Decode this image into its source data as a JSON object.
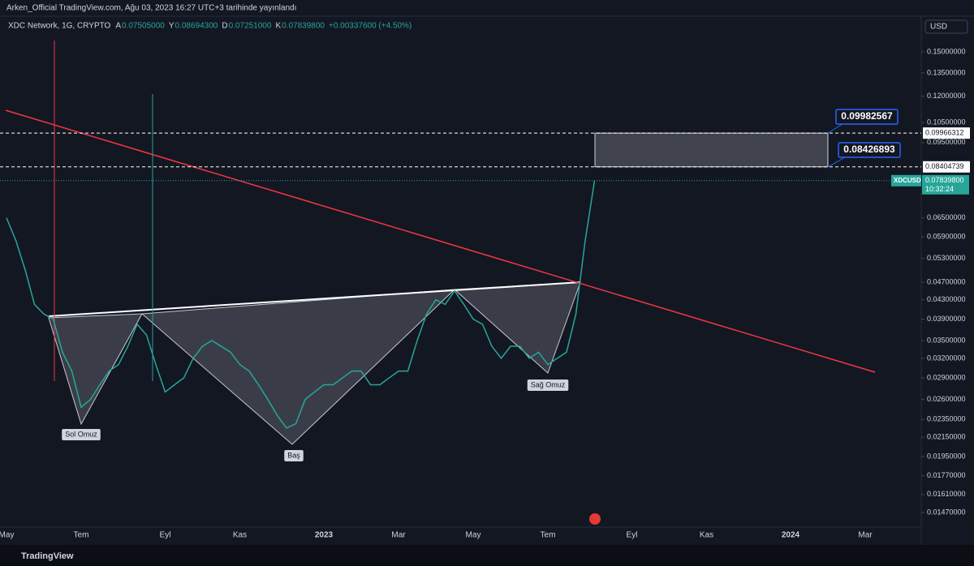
{
  "header": {
    "published": "Arken_Official TradingView.com, Ağu 03, 2023 16:27 UTC+3 tarihinde yayınlandı",
    "symbol": "XDC Network, 1G, CRYPTO",
    "ohlc": [
      {
        "key": "A",
        "text": "0.07505000"
      },
      {
        "key": "Y",
        "text": "0.08694300"
      },
      {
        "key": "D",
        "text": "0.07251000"
      },
      {
        "key": "K",
        "text": "0.07839800"
      }
    ],
    "change": "+0.00337600 (+4.50%)",
    "currency": "USD",
    "countdown": "10:32:24",
    "brand": "TradingView"
  },
  "chart_data": {
    "type": "line",
    "log_scale": true,
    "grid": false,
    "categories": [
      "May",
      null,
      null,
      null,
      null,
      null,
      null,
      null,
      "Tem",
      null,
      null,
      null,
      null,
      null,
      null,
      null,
      null,
      "Eyl",
      null,
      null,
      null,
      null,
      null,
      null,
      null,
      "Kas",
      null,
      null,
      null,
      null,
      null,
      null,
      null,
      null,
      "2023",
      null,
      null,
      null,
      null,
      null,
      null,
      null,
      "Mar",
      null,
      null,
      null,
      null,
      null,
      null,
      null,
      "May",
      null,
      null,
      null,
      null,
      null,
      null,
      null,
      "Tem",
      null,
      null,
      null,
      null,
      null,
      null,
      null,
      null,
      "Eyl",
      null,
      null,
      null,
      null,
      null,
      null,
      null,
      "Kas",
      null,
      null,
      null,
      null,
      null,
      null,
      null,
      null,
      "2024",
      null,
      null,
      null,
      null,
      null,
      null,
      null,
      "Mar",
      null,
      null,
      null,
      null,
      null
    ],
    "series": [
      {
        "name": "XDCUSD",
        "color": "#26a69a",
        "values": [
          0.065,
          0.058,
          0.05,
          0.042,
          0.04,
          0.039,
          0.033,
          0.03,
          0.025,
          0.026,
          0.028,
          0.03,
          0.031,
          0.034,
          0.038,
          0.036,
          0.031,
          0.027,
          0.028,
          0.029,
          0.032,
          0.034,
          0.035,
          0.034,
          0.033,
          0.031,
          0.03,
          0.028,
          0.026,
          0.024,
          0.0225,
          0.023,
          0.026,
          0.027,
          0.028,
          0.028,
          0.029,
          0.03,
          0.03,
          0.028,
          0.028,
          0.029,
          0.03,
          0.03,
          0.035,
          0.04,
          0.043,
          0.042,
          0.045,
          0.042,
          0.039,
          0.038,
          0.034,
          0.032,
          0.034,
          0.034,
          0.032,
          0.033,
          0.031,
          0.032,
          0.033,
          0.04,
          0.058,
          0.078398,
          null,
          null,
          null,
          null,
          null,
          null,
          null,
          null,
          null,
          null,
          null,
          null,
          null,
          null,
          null,
          null,
          null,
          null,
          null,
          null,
          null,
          null,
          null,
          null,
          null,
          null,
          null,
          null,
          null,
          null,
          null,
          null,
          null,
          null
        ],
        "value_labels": [
          null,
          null,
          null,
          null,
          null,
          null,
          null,
          null,
          null,
          null,
          null,
          null,
          null,
          null,
          null,
          null,
          null,
          null,
          null,
          null,
          null,
          null,
          null,
          null,
          null,
          null,
          null,
          null,
          null,
          null,
          null,
          null,
          null,
          null,
          null,
          null,
          null,
          null,
          null,
          null,
          null,
          null,
          null,
          null,
          null,
          null,
          null,
          null,
          null,
          null,
          null,
          null,
          null,
          null,
          null,
          null,
          null,
          null,
          null,
          null,
          null,
          null,
          null,
          "0.07839800",
          null,
          null,
          null,
          null,
          null,
          null,
          null,
          null,
          null,
          null,
          null,
          null,
          null,
          null,
          null,
          null,
          null,
          null,
          null,
          null,
          null,
          null,
          null,
          null,
          null,
          null,
          null,
          null,
          null,
          null,
          null,
          null,
          null,
          null
        ]
      }
    ],
    "ylim": [
      0.01366,
      0.1797
    ],
    "yticks": [
      {
        "value": 0.0147,
        "label": "0.01470000"
      },
      {
        "value": 0.0161,
        "label": "0.01610000"
      },
      {
        "value": 0.0177,
        "label": "0.01770000"
      },
      {
        "value": 0.0195,
        "label": "0.01950000"
      },
      {
        "value": 0.0215,
        "label": "0.02150000"
      },
      {
        "value": 0.0235,
        "label": "0.02350000"
      },
      {
        "value": 0.026,
        "label": "0.02600000"
      },
      {
        "value": 0.029,
        "label": "0.02900000"
      },
      {
        "value": 0.032,
        "label": "0.03200000"
      },
      {
        "value": 0.035,
        "label": "0.03500000"
      },
      {
        "value": 0.039,
        "label": "0.03900000"
      },
      {
        "value": 0.043,
        "label": "0.04300000"
      },
      {
        "value": 0.047,
        "label": "0.04700000"
      },
      {
        "value": 0.053,
        "label": "0.05300000"
      },
      {
        "value": 0.059,
        "label": "0.05900000"
      },
      {
        "value": 0.065,
        "label": "0.06500000"
      },
      {
        "value": 0.095,
        "label": "0.09500000"
      },
      {
        "value": 0.105,
        "label": "0.10500000"
      },
      {
        "value": 0.12,
        "label": "0.12000000"
      },
      {
        "value": 0.135,
        "label": "0.13500000"
      },
      {
        "value": 0.15,
        "label": "0.15000000"
      }
    ],
    "levels": [
      {
        "value": 0.09966312,
        "label": "0.09966312",
        "callout": "0.09982567"
      },
      {
        "value": 0.08404739,
        "label": "0.08404739",
        "callout": "0.08426893"
      }
    ],
    "annotations": [
      "Sol Omuz",
      "Baş",
      "Sağ Omuz"
    ]
  }
}
